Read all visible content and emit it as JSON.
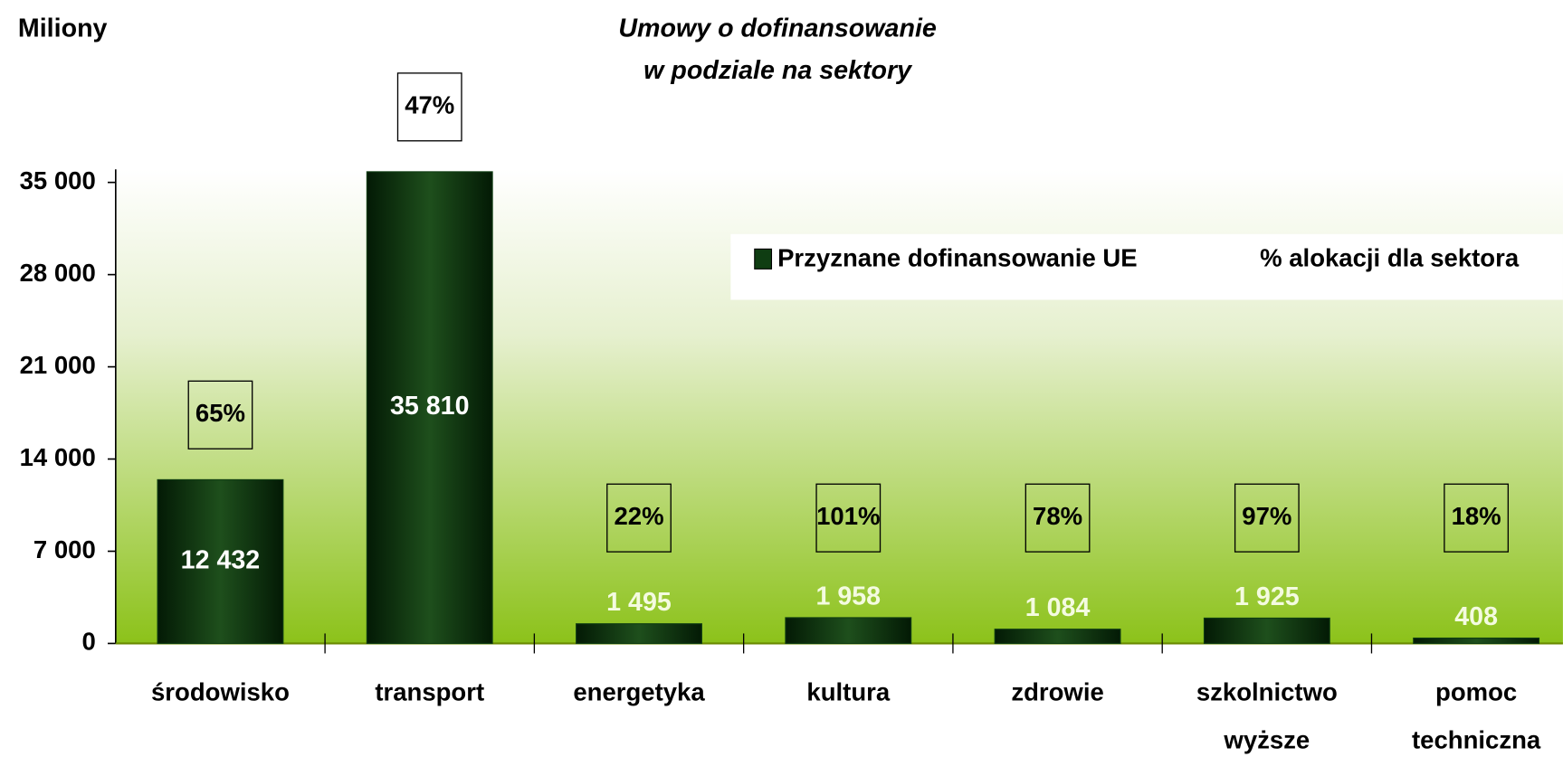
{
  "chart_data": {
    "type": "bar",
    "title": [
      "Umowy o dofinansowanie",
      "w podziale na sektory"
    ],
    "y_label": "Miliony",
    "categories": [
      "środowisko",
      "transport",
      "energetyka",
      "kultura",
      "zdrowie",
      "szkolnictwo wyższe",
      "pomoc techniczna"
    ],
    "series": [
      {
        "name": "Przyznane dofinansowanie UE",
        "color": "#0f3d12",
        "values": [
          12432,
          35810,
          1495,
          1958,
          1084,
          1925,
          408
        ],
        "value_labels": [
          "12 432",
          "35 810",
          "1 495",
          "1 958",
          "1 084",
          "1 925",
          "408"
        ]
      },
      {
        "name": "% alokacji dla sektora",
        "values": [
          65,
          47,
          22,
          101,
          78,
          97,
          18
        ],
        "value_labels": [
          "65%",
          "47%",
          "22%",
          "101%",
          "78%",
          "97%",
          "18%"
        ]
      }
    ],
    "ylim": [
      0,
      40000
    ],
    "yticks": [
      0,
      {
        "value": 7000,
        "label": "7 000"
      },
      {
        "value": 14000,
        "label": "14 000"
      },
      {
        "value": 21000,
        "label": "21 000"
      },
      {
        "value": 28000,
        "label": "28 000"
      },
      {
        "value": 35000,
        "label": "35 000"
      }
    ],
    "legend": "top-right"
  }
}
